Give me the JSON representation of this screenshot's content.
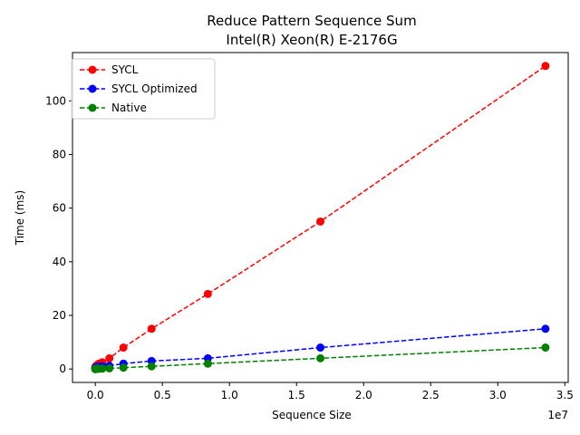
{
  "chart_data": {
    "type": "line",
    "title_line1": "Reduce Pattern Sequence Sum",
    "title_line2": "Intel(R) Xeon(R) E-2176G",
    "xlabel": "Sequence Size",
    "ylabel": "Time (ms)",
    "x_offset_label": "1e7",
    "xlim": [
      -1700000,
      35250000
    ],
    "ylim": [
      -5,
      118
    ],
    "xticks": [
      0,
      5000000,
      10000000,
      15000000,
      20000000,
      25000000,
      30000000,
      35000000
    ],
    "xtick_labels": [
      "0.0",
      "0.5",
      "1.0",
      "1.5",
      "2.0",
      "2.5",
      "3.0",
      "3.5"
    ],
    "yticks": [
      0,
      20,
      40,
      60,
      80,
      100
    ],
    "ytick_labels": [
      "0",
      "20",
      "40",
      "60",
      "80",
      "100"
    ],
    "grid": false,
    "legend_position": "top-left",
    "x": [
      1024,
      2048,
      4096,
      8192,
      16384,
      32768,
      65536,
      131072,
      262144,
      524288,
      1048576,
      2097152,
      4194304,
      8388608,
      16777216,
      33554432
    ],
    "series": [
      {
        "name": "SYCL",
        "color": "#ff0000",
        "values": [
          0.3,
          0.4,
          0.5,
          0.6,
          0.8,
          1.0,
          1.2,
          1.5,
          2.0,
          2.5,
          4.0,
          8.0,
          15.0,
          28.0,
          55.0,
          113.0
        ]
      },
      {
        "name": "SYCL Optimized",
        "color": "#0000ff",
        "values": [
          0.3,
          0.3,
          0.4,
          0.4,
          0.5,
          0.6,
          0.7,
          0.8,
          0.9,
          1.0,
          1.2,
          2.0,
          3.0,
          4.0,
          8.0,
          15.0
        ]
      },
      {
        "name": "Native",
        "color": "#008000",
        "values": [
          0.0,
          0.0,
          0.0,
          0.0,
          0.0,
          0.05,
          0.05,
          0.1,
          0.1,
          0.15,
          0.25,
          0.5,
          1.0,
          2.0,
          4.0,
          8.0
        ]
      }
    ]
  }
}
